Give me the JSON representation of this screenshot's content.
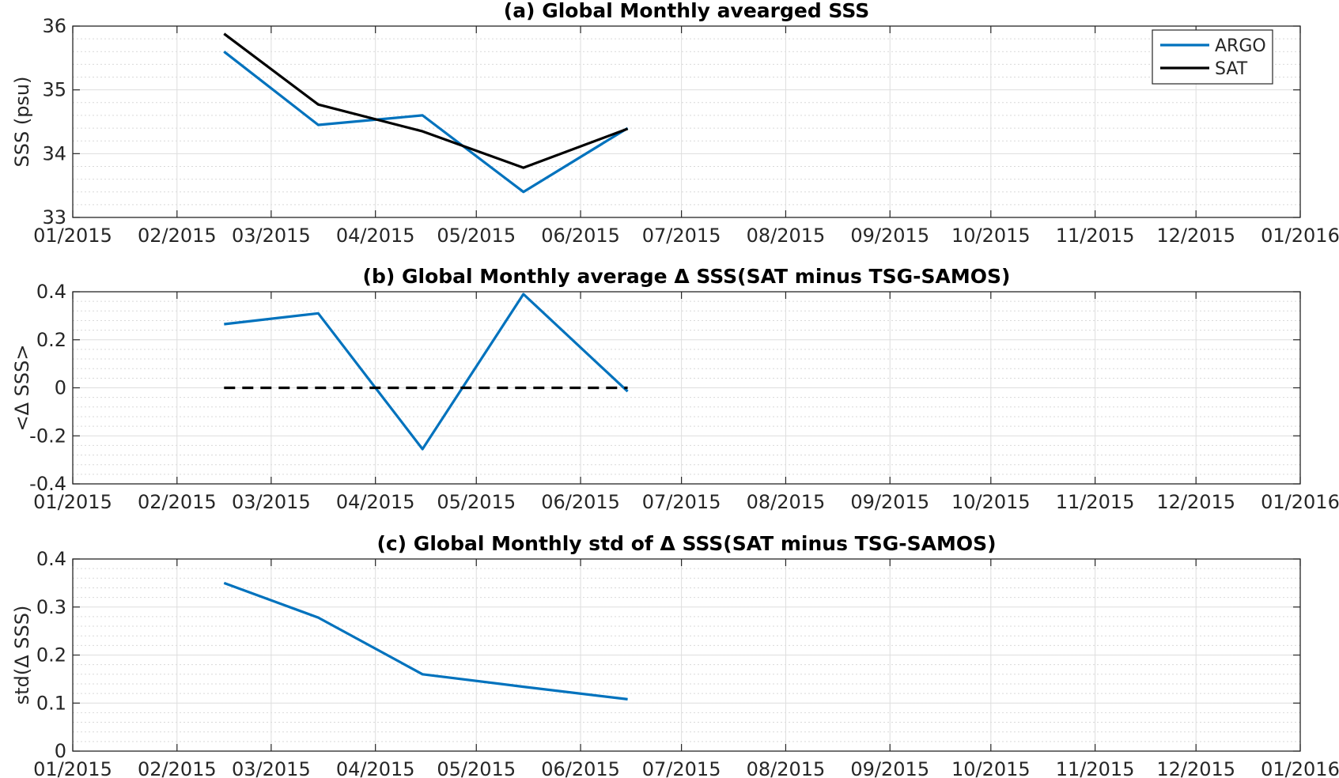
{
  "chart_data": [
    {
      "type": "line",
      "title": "(a) Global Monthly avearged SSS",
      "xlabel": "",
      "ylabel": "SSS (psu)",
      "xlim": [
        "01/2015",
        "01/2016"
      ],
      "ylim": [
        33,
        36
      ],
      "x_ticks": [
        "01/2015",
        "02/2015",
        "03/2015",
        "04/2015",
        "05/2015",
        "06/2015",
        "07/2015",
        "08/2015",
        "09/2015",
        "10/2015",
        "11/2015",
        "12/2015",
        "01/2016"
      ],
      "y_ticks": [
        "33",
        "34",
        "35",
        "36"
      ],
      "y_tick_values": [
        33,
        34,
        35,
        36
      ],
      "grid": true,
      "minor_grid": true,
      "legend": "top-right",
      "x": [
        "2015-02-15",
        "2015-03-15",
        "2015-04-15",
        "2015-05-15",
        "2015-06-15"
      ],
      "series": [
        {
          "name": "ARGO",
          "color": "#0072BD",
          "values": [
            35.6,
            34.45,
            34.6,
            33.4,
            34.4
          ]
        },
        {
          "name": "SAT",
          "color": "#000000",
          "values": [
            35.88,
            34.77,
            34.35,
            33.78,
            34.39
          ]
        }
      ]
    },
    {
      "type": "line",
      "title": "(b) Global Monthly average Δ SSS(SAT minus TSG-SAMOS)",
      "xlabel": "",
      "ylabel": "<Δ SSS>",
      "xlim": [
        "01/2015",
        "01/2016"
      ],
      "ylim": [
        -0.4,
        0.4
      ],
      "x_ticks": [
        "01/2015",
        "02/2015",
        "03/2015",
        "04/2015",
        "05/2015",
        "06/2015",
        "07/2015",
        "08/2015",
        "09/2015",
        "10/2015",
        "11/2015",
        "12/2015",
        "01/2016"
      ],
      "y_ticks": [
        "-0.4",
        "-0.2",
        "0",
        "0.2",
        "0.4"
      ],
      "y_tick_values": [
        -0.4,
        -0.2,
        0,
        0.2,
        0.4
      ],
      "grid": true,
      "minor_grid": true,
      "x": [
        "2015-02-15",
        "2015-03-15",
        "2015-04-15",
        "2015-05-15",
        "2015-06-15"
      ],
      "series": [
        {
          "color": "#0072BD",
          "values": [
            0.265,
            0.31,
            -0.255,
            0.39,
            -0.015
          ]
        },
        {
          "color": "#000000",
          "dashed": true,
          "values": [
            0,
            0,
            0,
            0,
            0
          ]
        }
      ]
    },
    {
      "type": "line",
      "title": "(c) Global Monthly std of Δ SSS(SAT minus TSG-SAMOS)",
      "xlabel": "",
      "ylabel": "std(Δ SSS)",
      "xlim": [
        "01/2015",
        "01/2016"
      ],
      "ylim": [
        0,
        0.4
      ],
      "x_ticks": [
        "01/2015",
        "02/2015",
        "03/2015",
        "04/2015",
        "05/2015",
        "06/2015",
        "07/2015",
        "08/2015",
        "09/2015",
        "10/2015",
        "11/2015",
        "12/2015",
        "01/2016"
      ],
      "y_ticks": [
        "0",
        "0.1",
        "0.2",
        "0.3",
        "0.4"
      ],
      "y_tick_values": [
        0,
        0.1,
        0.2,
        0.3,
        0.4
      ],
      "grid": true,
      "minor_grid": true,
      "x": [
        "2015-02-15",
        "2015-03-15",
        "2015-04-15",
        "2015-05-15",
        "2015-06-15"
      ],
      "series": [
        {
          "color": "#0072BD",
          "values": [
            0.35,
            0.278,
            0.16,
            0.134,
            0.108
          ]
        }
      ]
    }
  ]
}
